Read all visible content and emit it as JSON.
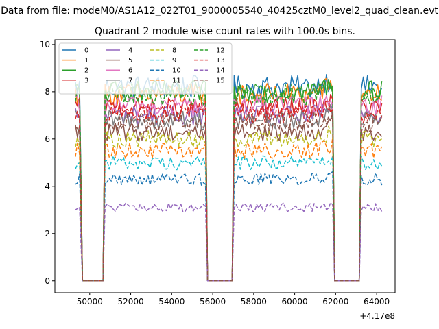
{
  "figure": {
    "suptitle": "Data from file: modeM0/AS1A12_022T01_9000005540_40425cztM0_level2_quad_clean.evt"
  },
  "chart_data": {
    "type": "line",
    "title": "Quadrant 2 module wise count rates with 100.0s bins.",
    "xlabel": "",
    "ylabel": "",
    "x_offset_label": "+4.17e8",
    "x_offset": 417000000,
    "xlim": [
      48300,
      64900
    ],
    "ylim": [
      -0.5,
      10.2
    ],
    "x_ticks": [
      50000,
      52000,
      54000,
      56000,
      58000,
      60000,
      62000,
      64000
    ],
    "y_ticks": [
      0,
      2,
      4,
      6,
      8,
      10
    ],
    "x_tick_labels": [
      "50000",
      "52000",
      "54000",
      "56000",
      "58000",
      "60000",
      "62000",
      "64000"
    ],
    "y_tick_labels": [
      "0",
      "2",
      "4",
      "6",
      "8",
      "10"
    ],
    "grid": false,
    "legend": {
      "placement": "top-left",
      "ncol": 4
    },
    "segments": [
      {
        "on": [
          49300,
          49550
        ],
        "gap": [
          49650,
          50650
        ]
      },
      {
        "on": [
          50750,
          55650
        ],
        "gap": [
          55750,
          56950
        ]
      },
      {
        "on": [
          57050,
          61850
        ],
        "gap": [
          61950,
          63150
        ]
      },
      {
        "on": [
          63250,
          64250
        ],
        "gap": null
      }
    ],
    "series": [
      {
        "name": "0",
        "color": "#1f77b4",
        "style": "solid",
        "level": 8.2
      },
      {
        "name": "1",
        "color": "#ff7f0e",
        "style": "solid",
        "level": 7.9
      },
      {
        "name": "2",
        "color": "#2ca02c",
        "style": "solid",
        "level": 8.0
      },
      {
        "name": "3",
        "color": "#d62728",
        "style": "solid",
        "level": 7.3
      },
      {
        "name": "4",
        "color": "#9467bd",
        "style": "solid",
        "level": 7.0
      },
      {
        "name": "5",
        "color": "#8c564b",
        "style": "solid",
        "level": 6.3
      },
      {
        "name": "6",
        "color": "#e377c2",
        "style": "solid",
        "level": 7.4
      },
      {
        "name": "7",
        "color": "#7f7f7f",
        "style": "solid",
        "level": 6.8
      },
      {
        "name": "8",
        "color": "#bcbd22",
        "style": "dashed",
        "level": 6.0
      },
      {
        "name": "9",
        "color": "#17becf",
        "style": "dashed",
        "level": 5.0
      },
      {
        "name": "10",
        "color": "#1f77b4",
        "style": "dashed",
        "level": 4.3
      },
      {
        "name": "11",
        "color": "#ff7f0e",
        "style": "dashed",
        "level": 5.5
      },
      {
        "name": "12",
        "color": "#2ca02c",
        "style": "dashed",
        "level": 7.9
      },
      {
        "name": "13",
        "color": "#d62728",
        "style": "dashed",
        "level": 7.1
      },
      {
        "name": "14",
        "color": "#9467bd",
        "style": "dashed",
        "level": 3.1
      },
      {
        "name": "15",
        "color": "#8c564b",
        "style": "dashed",
        "level": 6.7
      }
    ]
  }
}
